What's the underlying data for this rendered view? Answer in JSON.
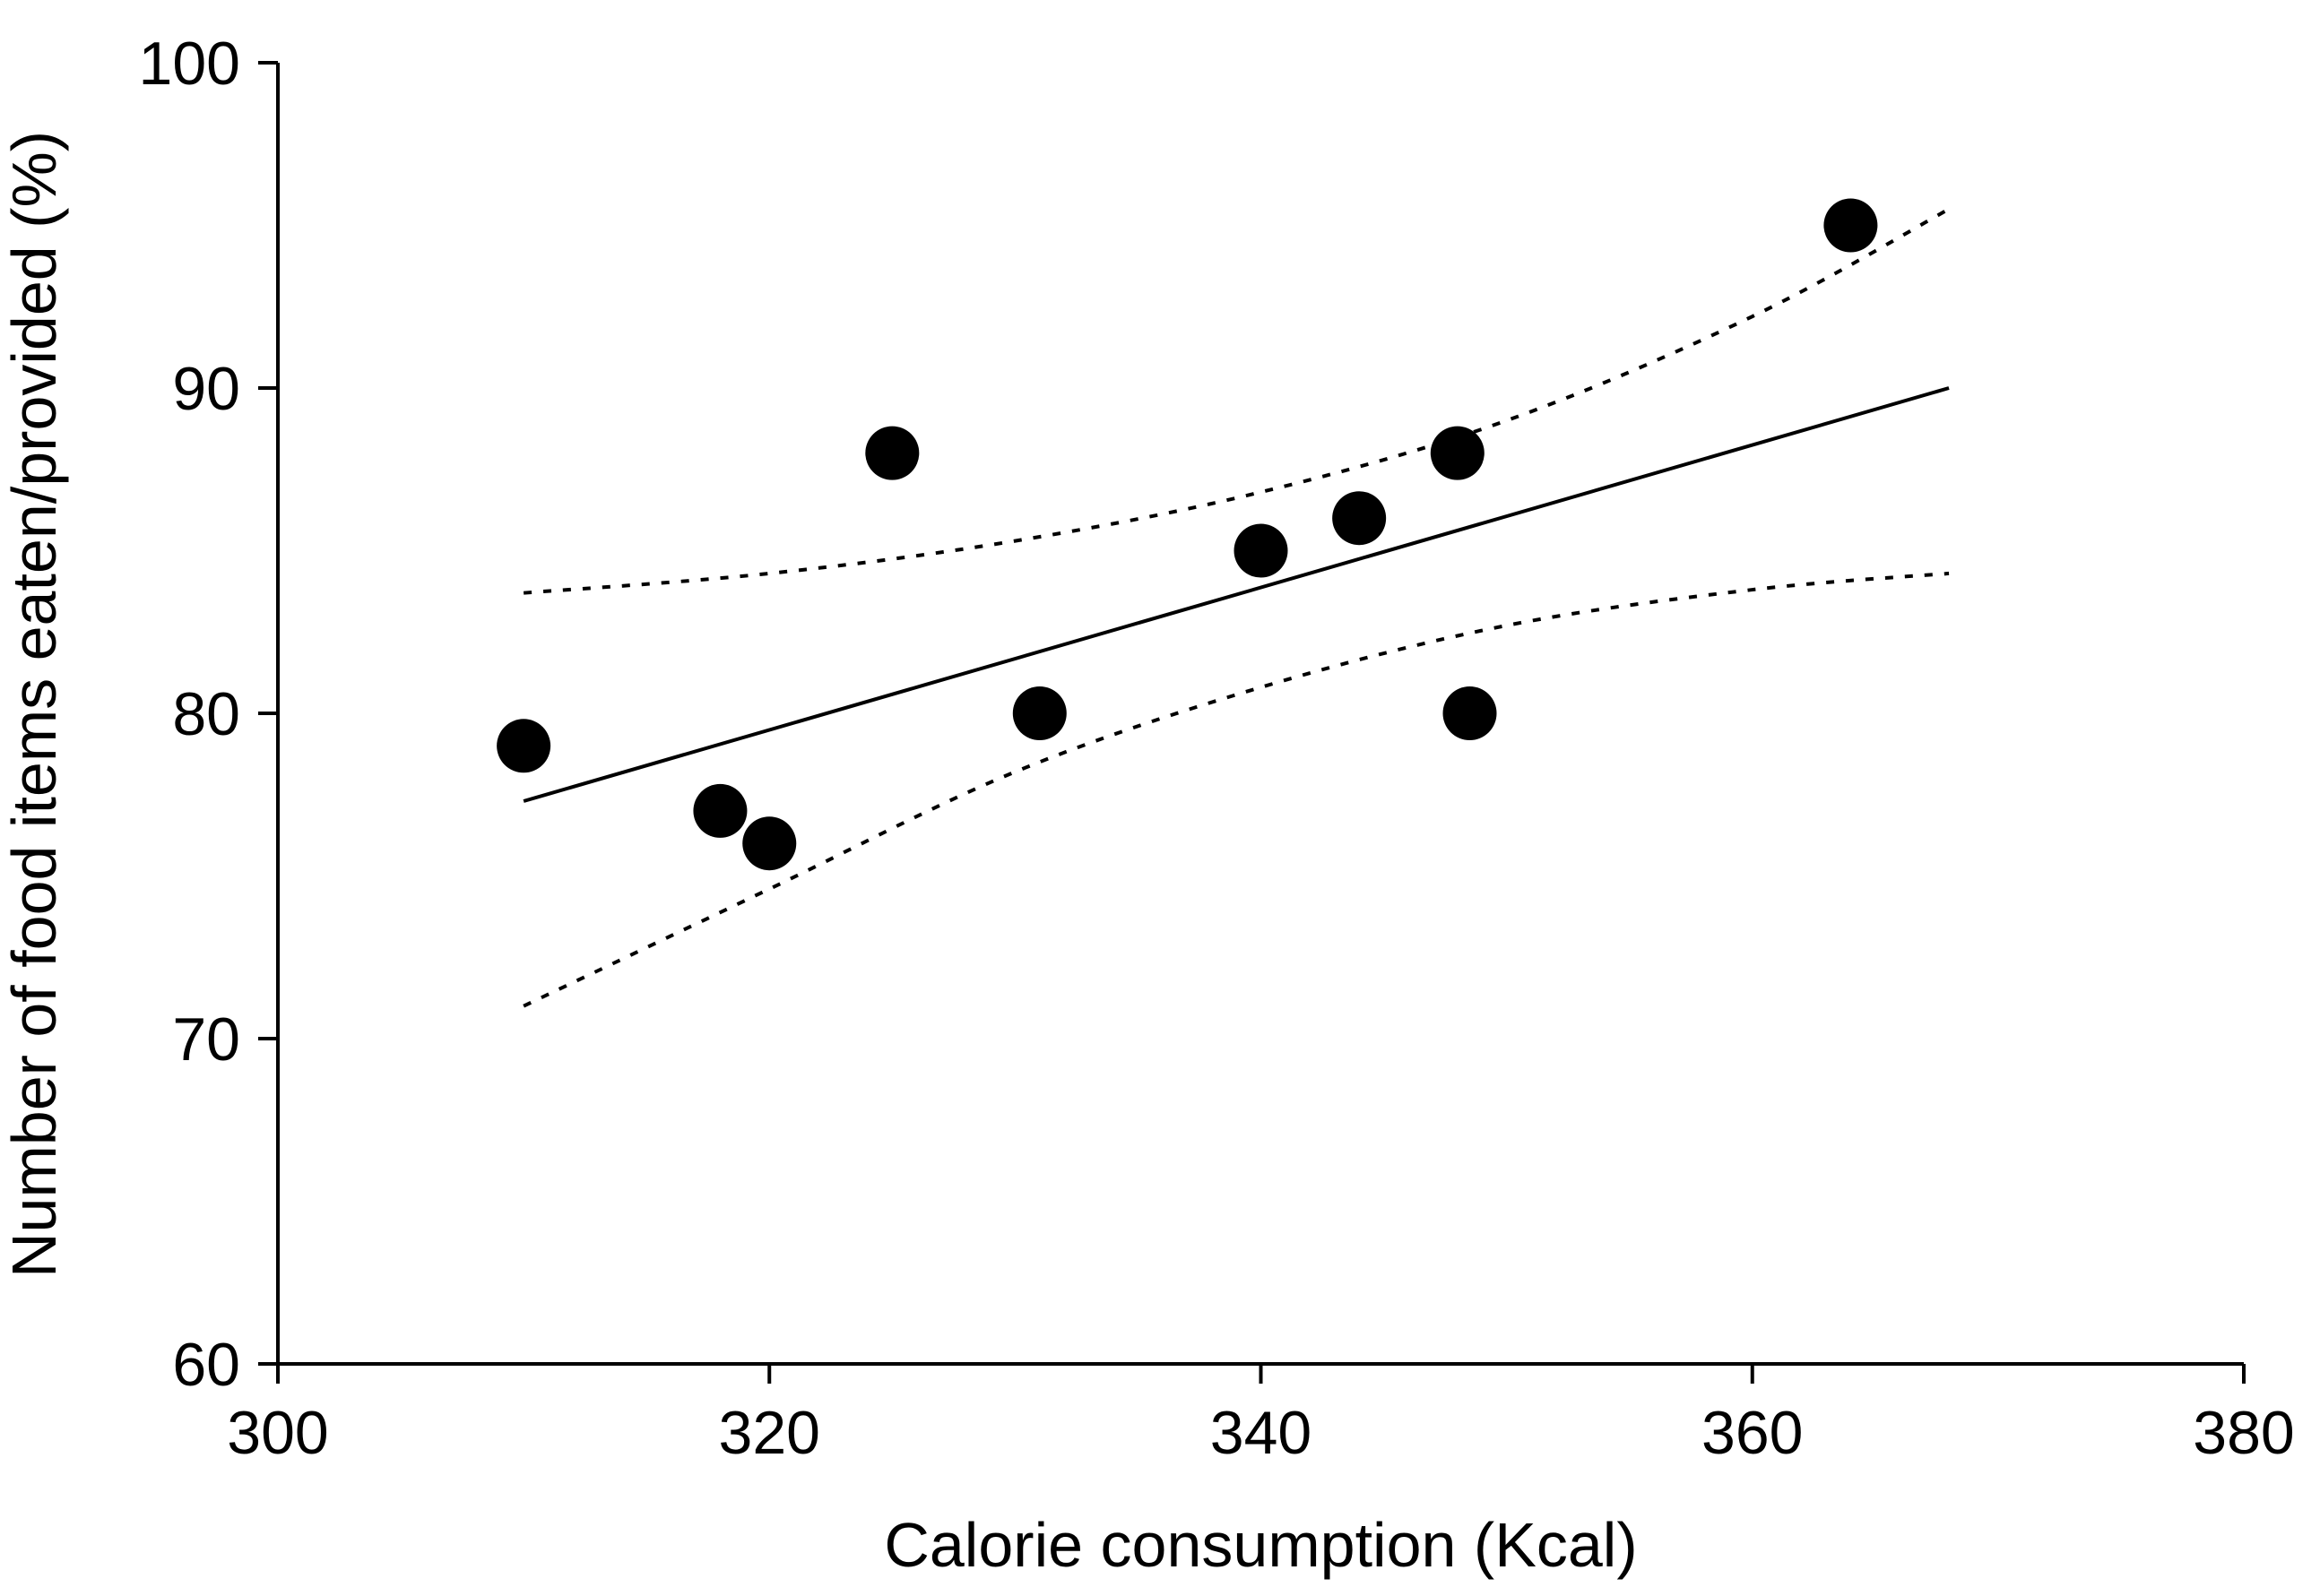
{
  "chart_data": {
    "type": "scatter",
    "title": "",
    "xlabel": "Calorie consumption (Kcal)",
    "ylabel": "Number of food items eaten/provided (%)",
    "xlim": [
      300,
      380
    ],
    "ylim": [
      60,
      100
    ],
    "xticks": [
      300,
      320,
      340,
      360,
      380
    ],
    "yticks": [
      60,
      70,
      80,
      90,
      100
    ],
    "grid": false,
    "points": [
      {
        "x": 310,
        "y": 79
      },
      {
        "x": 318,
        "y": 77
      },
      {
        "x": 320,
        "y": 76
      },
      {
        "x": 325,
        "y": 88
      },
      {
        "x": 331,
        "y": 80
      },
      {
        "x": 340,
        "y": 85
      },
      {
        "x": 344,
        "y": 86
      },
      {
        "x": 348,
        "y": 88
      },
      {
        "x": 348.5,
        "y": 80
      },
      {
        "x": 364,
        "y": 95
      }
    ],
    "fit_line": [
      {
        "x": 310,
        "y": 77.3
      },
      {
        "x": 368,
        "y": 90.0
      }
    ],
    "ci_upper": [
      {
        "x": 310,
        "y": 83.7
      },
      {
        "x": 320,
        "y": 84.3
      },
      {
        "x": 330,
        "y": 85.3
      },
      {
        "x": 340,
        "y": 86.8
      },
      {
        "x": 350,
        "y": 89.0
      },
      {
        "x": 360,
        "y": 92.2
      },
      {
        "x": 368,
        "y": 95.5
      }
    ],
    "ci_lower": [
      {
        "x": 310,
        "y": 71.0
      },
      {
        "x": 320,
        "y": 74.6
      },
      {
        "x": 330,
        "y": 78.2
      },
      {
        "x": 340,
        "y": 80.8
      },
      {
        "x": 350,
        "y": 82.7
      },
      {
        "x": 360,
        "y": 83.8
      },
      {
        "x": 368,
        "y": 84.3
      }
    ]
  }
}
